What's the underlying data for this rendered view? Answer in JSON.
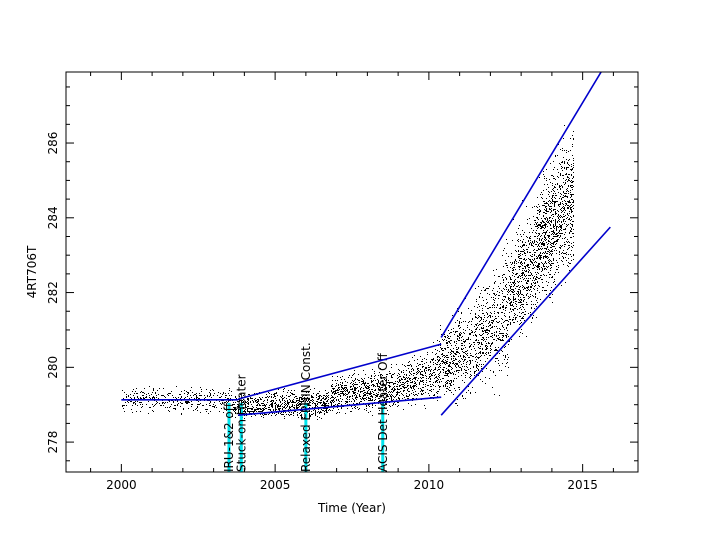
{
  "chart_data": {
    "type": "scatter",
    "title": "",
    "xlabel": "Time (Year)",
    "ylabel": "4RT706T",
    "xlim": [
      1998.2,
      2016.8
    ],
    "ylim": [
      277.2,
      287.9
    ],
    "xticks": [
      2000,
      2005,
      2010,
      2015
    ],
    "xtick_labels": [
      "2000",
      "2005",
      "2010",
      "2015"
    ],
    "yticks": [
      278,
      280,
      282,
      284,
      286
    ],
    "ytick_labels": [
      "278",
      "280",
      "282",
      "284",
      "286"
    ],
    "grid": false,
    "colors": {
      "points": "#000000",
      "fit_lines": "#0000cc",
      "event_markers": "#00e5ee"
    },
    "density_series": [
      {
        "x": [
          2000.0,
          2003.6
        ],
        "center": [
          279.15,
          279.15
        ],
        "spread": [
          0.25,
          0.25
        ],
        "density": 2
      },
      {
        "x": [
          2003.6,
          2006.8
        ],
        "center": [
          278.95,
          279.05
        ],
        "spread": [
          0.25,
          0.3
        ],
        "density": 5
      },
      {
        "x": [
          2006.8,
          2009.0
        ],
        "center": [
          279.25,
          279.45
        ],
        "spread": [
          0.35,
          0.45
        ],
        "density": 6
      },
      {
        "x": [
          2009.0,
          2010.3
        ],
        "center": [
          279.5,
          279.9
        ],
        "spread": [
          0.45,
          0.6
        ],
        "density": 6
      },
      {
        "x": [
          2010.3,
          2011.5
        ],
        "center": [
          280.0,
          280.6
        ],
        "spread": [
          0.7,
          1.0
        ],
        "density": 8
      },
      {
        "x": [
          2011.5,
          2012.6
        ],
        "center": [
          280.7,
          281.5
        ],
        "spread": [
          0.9,
          1.3
        ],
        "density": 9
      },
      {
        "x": [
          2012.6,
          2013.5
        ],
        "center": [
          282.0,
          283.0
        ],
        "spread": [
          1.0,
          1.3
        ],
        "density": 12
      },
      {
        "x": [
          2013.5,
          2014.7
        ],
        "center": [
          283.2,
          284.6
        ],
        "spread": [
          1.1,
          1.5
        ],
        "density": 16
      }
    ],
    "fit_lines": [
      {
        "name": "",
        "x": [
          2000.0,
          2003.8
        ],
        "y": [
          279.13,
          279.13
        ]
      },
      {
        "name": "",
        "x": [
          2003.8,
          2010.4
        ],
        "y": [
          279.15,
          280.62
        ]
      },
      {
        "name": "",
        "x": [
          2003.8,
          2010.4
        ],
        "y": [
          278.72,
          279.2
        ]
      },
      {
        "name": "",
        "x": [
          2010.4,
          2015.6
        ],
        "y": [
          280.8,
          287.9
        ]
      },
      {
        "name": "",
        "x": [
          2010.4,
          2015.9
        ],
        "y": [
          278.72,
          283.75
        ]
      }
    ],
    "events": [
      {
        "x": 2003.5,
        "label": "IRU-1&2 off"
      },
      {
        "x": 2003.9,
        "label": "Stuck-on Heater"
      },
      {
        "x": 2006.0,
        "label": "Relaxed EPHIN Const."
      },
      {
        "x": 2008.5,
        "label": "ACIS Det Heater Off"
      }
    ],
    "event_y": [
      277.2,
      279.05
    ]
  }
}
